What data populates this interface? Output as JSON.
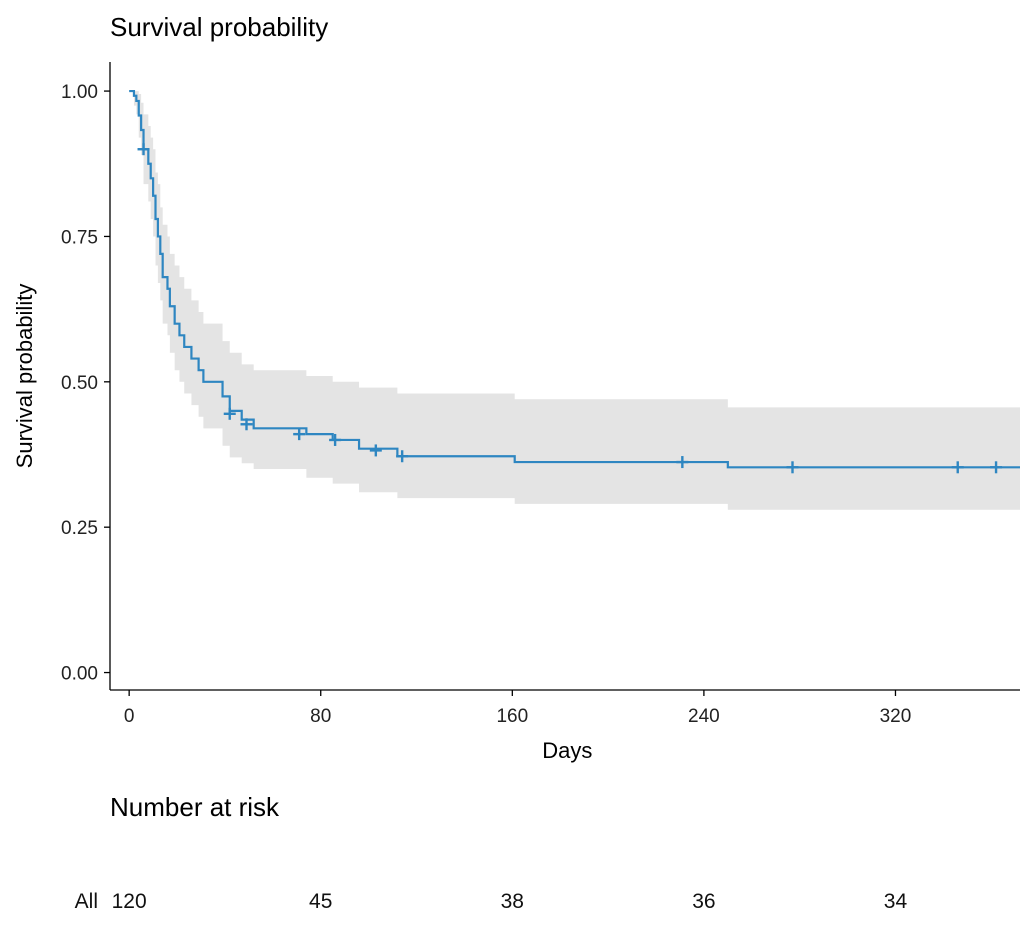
{
  "chart_data": {
    "type": "line",
    "title": "Survival probability",
    "xlabel": "Days",
    "ylabel": "Survival probability",
    "xlim": [
      -8,
      372
    ],
    "ylim": [
      -0.03,
      1.05
    ],
    "x_ticks": [
      0,
      80,
      160,
      240,
      320
    ],
    "y_ticks": [
      0.0,
      0.25,
      0.5,
      0.75,
      1.0
    ],
    "y_tick_labels": [
      "0.00",
      "0.25",
      "0.50",
      "0.75",
      "1.00"
    ],
    "grid": false,
    "legend": "none",
    "series": [
      {
        "name": "All",
        "color": "#2e86c1",
        "ci_color": "#e4e4e4",
        "steps": [
          {
            "x": 0,
            "y": 1.0,
            "lower": 1.0,
            "upper": 1.0
          },
          {
            "x": 2,
            "y": 0.992,
            "lower": 0.975,
            "upper": 1.0
          },
          {
            "x": 3,
            "y": 0.983,
            "lower": 0.96,
            "upper": 1.0
          },
          {
            "x": 4,
            "y": 0.958,
            "lower": 0.92,
            "upper": 0.995
          },
          {
            "x": 5,
            "y": 0.933,
            "lower": 0.89,
            "upper": 0.98
          },
          {
            "x": 6,
            "y": 0.9,
            "lower": 0.84,
            "upper": 0.96
          },
          {
            "x": 8,
            "y": 0.875,
            "lower": 0.81,
            "upper": 0.94
          },
          {
            "x": 9,
            "y": 0.85,
            "lower": 0.78,
            "upper": 0.92
          },
          {
            "x": 10,
            "y": 0.82,
            "lower": 0.75,
            "upper": 0.9
          },
          {
            "x": 11,
            "y": 0.78,
            "lower": 0.7,
            "upper": 0.86
          },
          {
            "x": 12,
            "y": 0.75,
            "lower": 0.67,
            "upper": 0.84
          },
          {
            "x": 13,
            "y": 0.72,
            "lower": 0.64,
            "upper": 0.8
          },
          {
            "x": 14,
            "y": 0.68,
            "lower": 0.6,
            "upper": 0.77
          },
          {
            "x": 16,
            "y": 0.66,
            "lower": 0.58,
            "upper": 0.75
          },
          {
            "x": 17,
            "y": 0.63,
            "lower": 0.55,
            "upper": 0.72
          },
          {
            "x": 19,
            "y": 0.6,
            "lower": 0.52,
            "upper": 0.7
          },
          {
            "x": 21,
            "y": 0.58,
            "lower": 0.5,
            "upper": 0.68
          },
          {
            "x": 23,
            "y": 0.56,
            "lower": 0.48,
            "upper": 0.66
          },
          {
            "x": 26,
            "y": 0.54,
            "lower": 0.46,
            "upper": 0.64
          },
          {
            "x": 29,
            "y": 0.52,
            "lower": 0.44,
            "upper": 0.62
          },
          {
            "x": 31,
            "y": 0.5,
            "lower": 0.42,
            "upper": 0.6
          },
          {
            "x": 39,
            "y": 0.475,
            "lower": 0.39,
            "upper": 0.57
          },
          {
            "x": 42,
            "y": 0.45,
            "lower": 0.37,
            "upper": 0.55
          },
          {
            "x": 47,
            "y": 0.435,
            "lower": 0.36,
            "upper": 0.53
          },
          {
            "x": 52,
            "y": 0.42,
            "lower": 0.35,
            "upper": 0.52
          },
          {
            "x": 74,
            "y": 0.41,
            "lower": 0.335,
            "upper": 0.51
          },
          {
            "x": 85,
            "y": 0.4,
            "lower": 0.325,
            "upper": 0.5
          },
          {
            "x": 96,
            "y": 0.385,
            "lower": 0.31,
            "upper": 0.49
          },
          {
            "x": 112,
            "y": 0.372,
            "lower": 0.3,
            "upper": 0.48
          },
          {
            "x": 161,
            "y": 0.362,
            "lower": 0.29,
            "upper": 0.47
          },
          {
            "x": 250,
            "y": 0.353,
            "lower": 0.28,
            "upper": 0.456
          }
        ],
        "end_x": 372,
        "censored": [
          {
            "x": 6,
            "y": 0.9
          },
          {
            "x": 42,
            "y": 0.445
          },
          {
            "x": 49,
            "y": 0.427
          },
          {
            "x": 71,
            "y": 0.41
          },
          {
            "x": 86,
            "y": 0.4
          },
          {
            "x": 103,
            "y": 0.382
          },
          {
            "x": 114,
            "y": 0.372
          },
          {
            "x": 231,
            "y": 0.362
          },
          {
            "x": 277,
            "y": 0.353
          },
          {
            "x": 346,
            "y": 0.353
          },
          {
            "x": 362,
            "y": 0.353
          }
        ]
      }
    ]
  },
  "risk_table": {
    "title": "Number at risk",
    "strata_label": "All",
    "strata_color": "#2e86c1",
    "times": [
      0,
      80,
      160,
      240,
      320
    ],
    "counts": [
      "120",
      "45",
      "38",
      "36",
      "34"
    ]
  }
}
